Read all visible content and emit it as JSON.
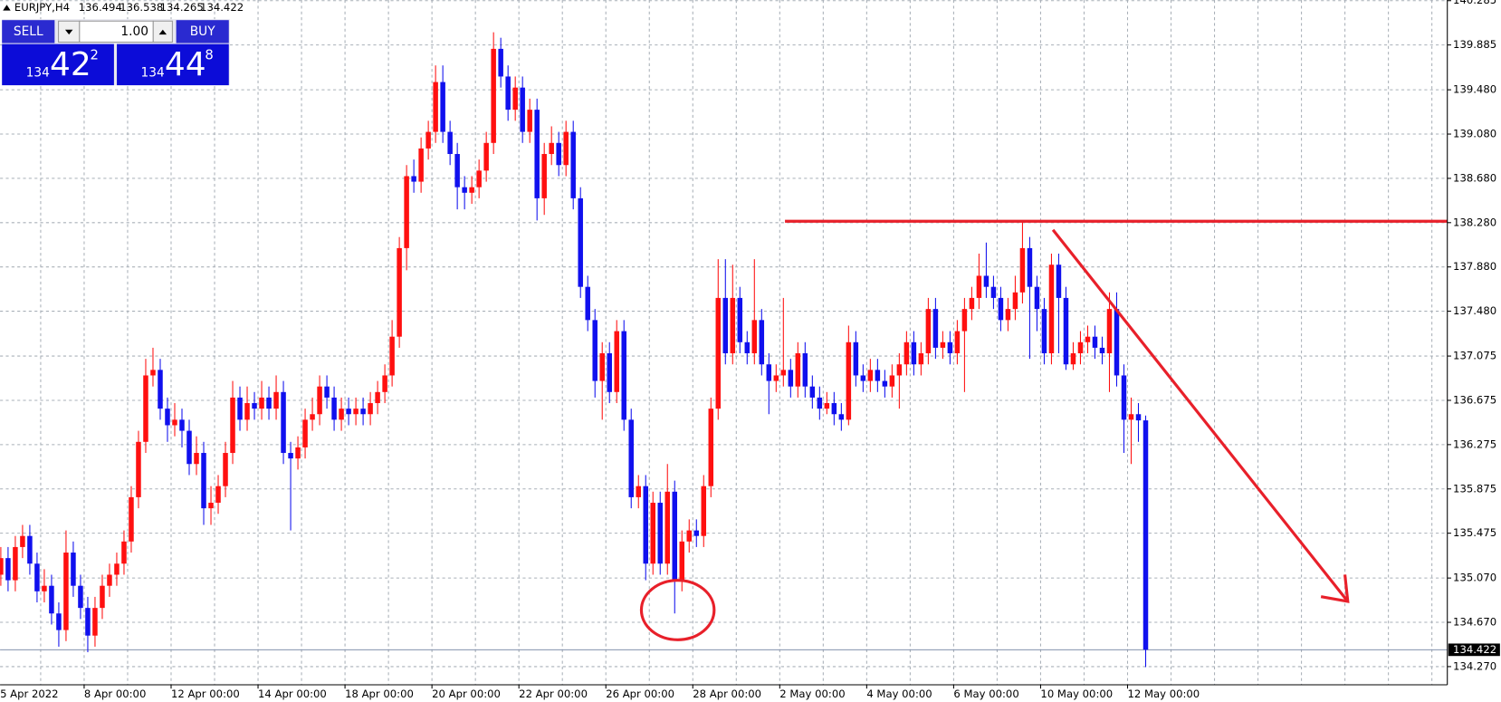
{
  "chart_data": {
    "type": "candlestick",
    "symbol": "EURJPY,H4",
    "up_color": "#ff1010",
    "down_color": "#1010ee",
    "grid": true,
    "ylim": [
      134.106,
      140.291
    ],
    "yticks": [
      {
        "value": 140.285,
        "label": "140.285"
      },
      139.885,
      {
        "value": 139.48,
        "label": "139.480"
      },
      {
        "value": 139.08,
        "label": "139.080"
      },
      {
        "value": 138.68,
        "label": "138.680"
      },
      {
        "value": 138.28,
        "label": "138.280"
      },
      {
        "value": 137.88,
        "label": "137.880"
      },
      {
        "value": 137.48,
        "label": "137.480"
      },
      137.075,
      136.675,
      136.275,
      135.875,
      135.475,
      {
        "value": 135.07,
        "label": "135.070"
      },
      {
        "value": 134.67,
        "label": "134.670"
      },
      {
        "value": 134.27,
        "label": "134.270"
      }
    ],
    "xticks": [
      {
        "value": 0,
        "label": "5 Apr 2022"
      },
      {
        "value": 12,
        "label": "8 Apr 00:00"
      },
      {
        "value": 24,
        "label": "12 Apr 00:00"
      },
      {
        "value": 36,
        "label": "14 Apr 00:00"
      },
      {
        "value": 48,
        "label": "18 Apr 00:00"
      },
      {
        "value": 60,
        "label": "20 Apr 00:00"
      },
      {
        "value": 72,
        "label": "22 Apr 00:00"
      },
      {
        "value": 84,
        "label": "26 Apr 00:00"
      },
      {
        "value": 96,
        "label": "28 Apr 00:00"
      },
      {
        "value": 108,
        "label": "2 May 00:00"
      },
      {
        "value": 120,
        "label": "4 May 00:00"
      },
      {
        "value": 132,
        "label": "6 May 00:00"
      },
      {
        "value": 144,
        "label": "10 May 00:00"
      },
      {
        "value": 156,
        "label": "12 May 00:00"
      }
    ],
    "candles": [
      [
        135.1,
        135.35,
        135.0,
        135.25
      ],
      [
        135.25,
        135.35,
        134.95,
        135.05
      ],
      [
        135.05,
        135.45,
        134.95,
        135.35
      ],
      [
        135.35,
        135.55,
        135.25,
        135.45
      ],
      [
        135.45,
        135.55,
        135.1,
        135.2
      ],
      [
        135.2,
        135.3,
        134.85,
        134.95
      ],
      [
        134.95,
        135.15,
        134.85,
        135.0
      ],
      [
        135.0,
        135.1,
        134.65,
        134.75
      ],
      [
        134.75,
        134.85,
        134.45,
        134.6
      ],
      [
        134.6,
        135.5,
        134.5,
        135.3
      ],
      [
        135.3,
        135.4,
        134.9,
        135.0
      ],
      [
        135.0,
        135.1,
        134.7,
        134.8
      ],
      [
        134.8,
        134.9,
        134.4,
        134.55
      ],
      [
        134.55,
        134.9,
        134.45,
        134.8
      ],
      [
        134.8,
        135.1,
        134.7,
        135.0
      ],
      [
        135.0,
        135.2,
        134.9,
        135.1
      ],
      [
        135.1,
        135.3,
        135.0,
        135.2
      ],
      [
        135.2,
        135.5,
        135.1,
        135.4
      ],
      [
        135.4,
        135.9,
        135.3,
        135.8
      ],
      [
        135.8,
        136.4,
        135.7,
        136.3
      ],
      [
        136.3,
        137.05,
        136.2,
        136.9
      ],
      [
        136.9,
        137.15,
        136.8,
        136.95
      ],
      [
        136.95,
        137.05,
        136.5,
        136.6
      ],
      [
        136.6,
        136.7,
        136.3,
        136.45
      ],
      [
        136.45,
        136.65,
        136.35,
        136.5
      ],
      [
        136.5,
        136.6,
        136.25,
        136.4
      ],
      [
        136.4,
        136.5,
        136.0,
        136.1
      ],
      [
        136.1,
        136.35,
        136.0,
        136.2
      ],
      [
        136.2,
        136.3,
        135.55,
        135.7
      ],
      [
        135.7,
        135.9,
        135.55,
        135.75
      ],
      [
        135.75,
        136.0,
        135.65,
        135.9
      ],
      [
        135.9,
        136.3,
        135.8,
        136.2
      ],
      [
        136.2,
        136.85,
        136.1,
        136.7
      ],
      [
        136.7,
        136.8,
        136.4,
        136.5
      ],
      [
        136.5,
        136.8,
        136.4,
        136.65
      ],
      [
        136.65,
        136.75,
        136.5,
        136.6
      ],
      [
        136.6,
        136.85,
        136.5,
        136.7
      ],
      [
        136.7,
        136.8,
        136.5,
        136.6
      ],
      [
        136.6,
        136.9,
        136.5,
        136.75
      ],
      [
        136.75,
        136.85,
        136.1,
        136.2
      ],
      [
        136.2,
        136.3,
        135.5,
        136.15
      ],
      [
        136.15,
        136.35,
        136.05,
        136.25
      ],
      [
        136.25,
        136.6,
        136.15,
        136.5
      ],
      [
        136.5,
        136.7,
        136.4,
        136.55
      ],
      [
        136.55,
        136.9,
        136.45,
        136.8
      ],
      [
        136.8,
        136.9,
        136.6,
        136.7
      ],
      [
        136.7,
        136.8,
        136.4,
        136.5
      ],
      [
        136.5,
        136.7,
        136.4,
        136.6
      ],
      [
        136.6,
        136.7,
        136.45,
        136.55
      ],
      [
        136.55,
        136.7,
        136.45,
        136.6
      ],
      [
        136.6,
        136.7,
        136.45,
        136.55
      ],
      [
        136.55,
        136.75,
        136.45,
        136.65
      ],
      [
        136.65,
        136.85,
        136.55,
        136.75
      ],
      [
        136.75,
        137.0,
        136.65,
        136.9
      ],
      [
        136.9,
        137.4,
        136.8,
        137.25
      ],
      [
        137.25,
        138.15,
        137.15,
        138.05
      ],
      [
        138.05,
        138.8,
        137.85,
        138.7
      ],
      [
        138.7,
        138.85,
        138.55,
        138.65
      ],
      [
        138.65,
        139.05,
        138.55,
        138.95
      ],
      [
        138.95,
        139.2,
        138.85,
        139.1
      ],
      [
        139.1,
        139.7,
        139.0,
        139.55
      ],
      [
        139.55,
        139.7,
        139.0,
        139.1
      ],
      [
        139.1,
        139.2,
        138.8,
        138.9
      ],
      [
        138.9,
        139.0,
        138.4,
        138.6
      ],
      [
        138.6,
        138.7,
        138.4,
        138.55
      ],
      [
        138.55,
        138.7,
        138.45,
        138.6
      ],
      [
        138.6,
        138.85,
        138.5,
        138.75
      ],
      [
        138.75,
        139.1,
        138.65,
        139.0
      ],
      [
        139.0,
        140.0,
        138.9,
        139.85
      ],
      [
        139.85,
        139.95,
        139.5,
        139.6
      ],
      [
        139.6,
        139.7,
        139.2,
        139.3
      ],
      [
        139.3,
        139.6,
        139.2,
        139.5
      ],
      [
        139.5,
        139.6,
        139.0,
        139.1
      ],
      [
        139.1,
        139.4,
        139.0,
        139.3
      ],
      [
        139.3,
        139.4,
        138.3,
        138.5
      ],
      [
        138.5,
        139.0,
        138.35,
        138.9
      ],
      [
        138.9,
        139.15,
        138.8,
        139.0
      ],
      [
        139.0,
        139.1,
        138.7,
        138.8
      ],
      [
        138.8,
        139.2,
        138.7,
        139.1
      ],
      [
        139.1,
        139.2,
        138.4,
        138.5
      ],
      [
        138.5,
        138.6,
        137.6,
        137.7
      ],
      [
        137.7,
        137.8,
        137.3,
        137.4
      ],
      [
        137.4,
        137.5,
        136.7,
        136.85
      ],
      [
        136.85,
        137.2,
        136.5,
        137.1
      ],
      [
        137.1,
        137.2,
        136.65,
        136.75
      ],
      [
        136.75,
        137.4,
        136.65,
        137.3
      ],
      [
        137.3,
        137.4,
        136.4,
        136.5
      ],
      [
        136.5,
        136.6,
        135.7,
        135.8
      ],
      [
        135.8,
        136.0,
        135.7,
        135.9
      ],
      [
        135.9,
        136.0,
        135.05,
        135.2
      ],
      [
        135.2,
        135.85,
        135.1,
        135.75
      ],
      [
        135.75,
        135.85,
        135.1,
        135.2
      ],
      [
        135.2,
        136.1,
        135.1,
        135.85
      ],
      [
        135.85,
        135.95,
        134.75,
        135.05
      ],
      [
        135.05,
        135.5,
        134.95,
        135.4
      ],
      [
        135.4,
        135.6,
        135.3,
        135.5
      ],
      [
        135.5,
        135.6,
        135.35,
        135.45
      ],
      [
        135.45,
        136.0,
        135.35,
        135.9
      ],
      [
        135.9,
        136.7,
        135.8,
        136.6
      ],
      [
        136.6,
        137.95,
        136.5,
        137.6
      ],
      [
        137.6,
        137.95,
        137.0,
        137.1
      ],
      [
        137.1,
        137.9,
        137.0,
        137.6
      ],
      [
        137.6,
        137.7,
        137.1,
        137.2
      ],
      [
        137.2,
        137.3,
        137.0,
        137.1
      ],
      [
        137.1,
        137.95,
        137.0,
        137.4
      ],
      [
        137.4,
        137.5,
        136.9,
        137.0
      ],
      [
        137.0,
        137.1,
        136.55,
        136.85
      ],
      [
        136.85,
        137.0,
        136.75,
        136.9
      ],
      [
        136.9,
        137.6,
        136.8,
        136.95
      ],
      [
        136.95,
        137.05,
        136.7,
        136.8
      ],
      [
        136.8,
        137.2,
        136.7,
        137.1
      ],
      [
        137.1,
        137.2,
        136.7,
        136.8
      ],
      [
        136.8,
        136.9,
        136.6,
        136.7
      ],
      [
        136.7,
        136.8,
        136.5,
        136.6
      ],
      [
        136.6,
        136.75,
        136.55,
        136.65
      ],
      [
        136.65,
        136.75,
        136.45,
        136.55
      ],
      [
        136.55,
        136.65,
        136.4,
        136.5
      ],
      [
        136.5,
        137.35,
        136.45,
        137.2
      ],
      [
        137.2,
        137.3,
        136.8,
        136.9
      ],
      [
        136.9,
        137.0,
        136.75,
        136.85
      ],
      [
        136.85,
        137.05,
        136.75,
        136.95
      ],
      [
        136.95,
        137.05,
        136.75,
        136.85
      ],
      [
        136.85,
        136.95,
        136.7,
        136.8
      ],
      [
        136.8,
        137.0,
        136.7,
        136.9
      ],
      [
        136.9,
        137.1,
        136.6,
        137.0
      ],
      [
        137.0,
        137.3,
        136.9,
        137.2
      ],
      [
        137.2,
        137.3,
        136.9,
        137.0
      ],
      [
        137.0,
        137.2,
        136.9,
        137.1
      ],
      [
        137.1,
        137.6,
        137.0,
        137.5
      ],
      [
        137.5,
        137.6,
        137.05,
        137.15
      ],
      [
        137.15,
        137.3,
        137.05,
        137.2
      ],
      [
        137.2,
        137.3,
        137.0,
        137.1
      ],
      [
        137.1,
        137.4,
        137.0,
        137.3
      ],
      [
        137.3,
        137.6,
        136.75,
        137.5
      ],
      [
        137.5,
        137.7,
        137.4,
        137.6
      ],
      [
        137.6,
        138.0,
        137.5,
        137.8
      ],
      [
        137.8,
        138.1,
        137.6,
        137.7
      ],
      [
        137.7,
        137.8,
        137.5,
        137.6
      ],
      [
        137.6,
        137.7,
        137.3,
        137.4
      ],
      [
        137.4,
        137.6,
        137.3,
        137.5
      ],
      [
        137.5,
        137.8,
        137.4,
        137.65
      ],
      [
        137.65,
        138.3,
        137.55,
        138.05
      ],
      [
        138.05,
        138.15,
        137.05,
        137.7
      ],
      [
        137.7,
        137.8,
        137.3,
        137.5
      ],
      [
        137.5,
        137.6,
        137.0,
        137.1
      ],
      [
        137.1,
        138.0,
        137.0,
        137.9
      ],
      [
        137.9,
        138.0,
        137.1,
        137.6
      ],
      [
        137.6,
        137.7,
        136.95,
        137.0
      ],
      [
        137.0,
        137.2,
        136.95,
        137.1
      ],
      [
        137.1,
        137.3,
        137.0,
        137.2
      ],
      [
        137.2,
        137.35,
        137.1,
        137.25
      ],
      [
        137.25,
        137.35,
        137.05,
        137.15
      ],
      [
        137.15,
        137.25,
        137.0,
        137.1
      ],
      [
        137.1,
        137.65,
        136.75,
        137.5
      ],
      [
        137.5,
        137.65,
        136.8,
        136.9
      ],
      [
        136.9,
        137.0,
        136.2,
        136.5
      ],
      [
        136.5,
        136.7,
        136.1,
        136.55
      ],
      [
        136.55,
        136.65,
        136.3,
        136.494
      ],
      [
        136.494,
        136.538,
        134.265,
        134.422
      ]
    ]
  },
  "trade_panel": {
    "sell": "SELL",
    "buy": "BUY",
    "lot": "1.00",
    "bid": {
      "big": "134",
      "main": "42",
      "sup": "2"
    },
    "ask": {
      "big": "134",
      "main": "44",
      "sup": "8"
    }
  }
}
